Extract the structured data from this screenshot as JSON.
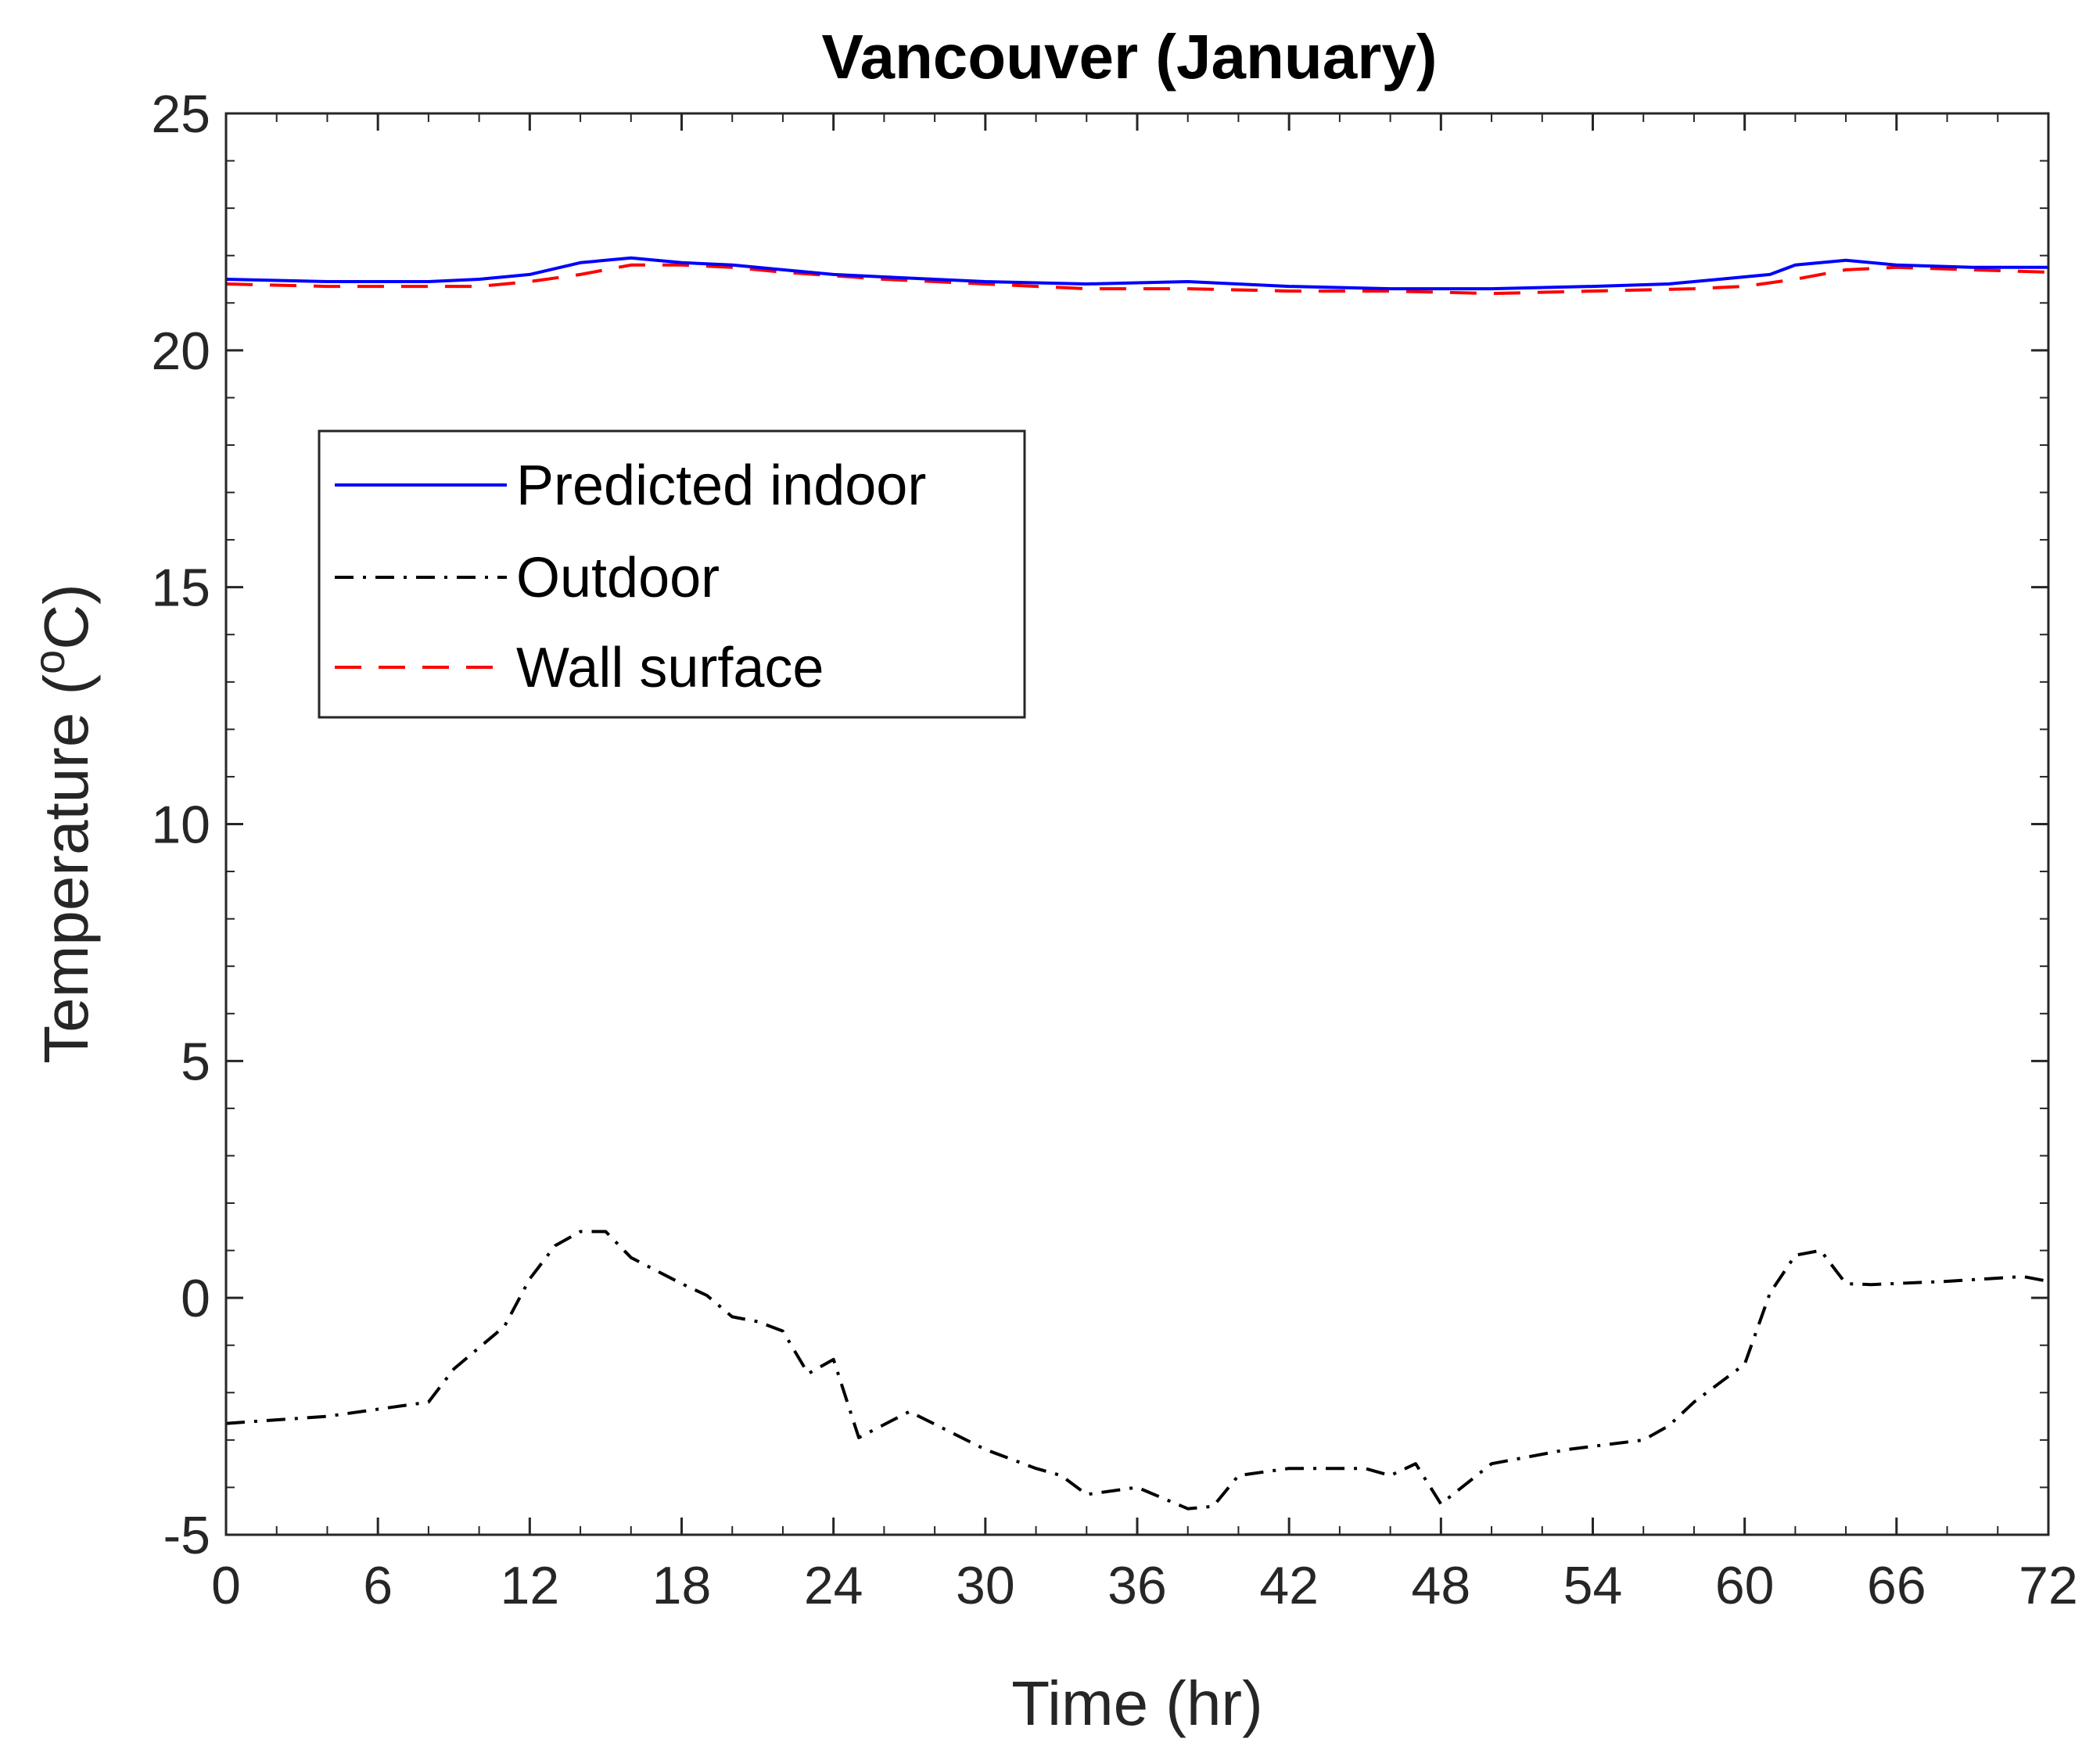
{
  "chart_data": {
    "type": "line",
    "title": "Vancouver (January)",
    "xlabel": "Time (hr)",
    "ylabel_main": "Temperature (",
    "ylabel_sup": "o",
    "ylabel_tail": "C)",
    "xlim": [
      0,
      72
    ],
    "ylim": [
      -5,
      25
    ],
    "x_ticks": [
      0,
      6,
      12,
      18,
      24,
      30,
      36,
      42,
      48,
      54,
      60,
      66,
      72
    ],
    "x_tick_labels": [
      "0",
      "6",
      "12",
      "18",
      "24",
      "30",
      "36",
      "42",
      "48",
      "54",
      "60",
      "66",
      "72"
    ],
    "y_ticks": [
      -5,
      0,
      5,
      10,
      15,
      20,
      25
    ],
    "y_tick_labels": [
      "-5",
      "0",
      "5",
      "10",
      "15",
      "20",
      "25"
    ],
    "grid": false,
    "legend_position": "upper-left",
    "series": [
      {
        "name": "Predicted indoor",
        "color": "#0000ff",
        "style": "solid",
        "x": [
          0,
          4,
          8,
          10,
          12,
          14,
          16,
          18,
          20,
          22,
          24,
          26,
          30,
          34,
          38,
          42,
          46,
          50,
          54,
          57,
          59,
          61,
          62,
          64,
          66,
          69,
          72
        ],
        "y": [
          21.5,
          21.45,
          21.45,
          21.5,
          21.6,
          21.85,
          21.95,
          21.85,
          21.8,
          21.7,
          21.6,
          21.55,
          21.45,
          21.4,
          21.45,
          21.35,
          21.3,
          21.3,
          21.35,
          21.4,
          21.5,
          21.6,
          21.8,
          21.9,
          21.8,
          21.75,
          21.75
        ]
      },
      {
        "name": "Outdoor",
        "color": "#000000",
        "style": "dashdot",
        "x": [
          0,
          4,
          8,
          9,
          10,
          11,
          12,
          13,
          14,
          15,
          16,
          18,
          19,
          20,
          21,
          22,
          23,
          24,
          25,
          27,
          30,
          32,
          33,
          34,
          36,
          38,
          39,
          40,
          42,
          45,
          46,
          47,
          48,
          50,
          53,
          56,
          57,
          58,
          59,
          60,
          61,
          62,
          63,
          64,
          65,
          68,
          71,
          72
        ],
        "y": [
          -2.65,
          -2.5,
          -2.2,
          -1.5,
          -1.05,
          -0.6,
          0.4,
          1.1,
          1.4,
          1.4,
          0.85,
          0.3,
          0.05,
          -0.4,
          -0.5,
          -0.7,
          -1.6,
          -1.3,
          -2.95,
          -2.4,
          -3.2,
          -3.6,
          -3.75,
          -4.15,
          -4.0,
          -4.45,
          -4.4,
          -3.75,
          -3.6,
          -3.6,
          -3.75,
          -3.5,
          -4.35,
          -3.5,
          -3.2,
          -3.0,
          -2.7,
          -2.2,
          -1.8,
          -1.4,
          0.1,
          0.9,
          1.0,
          0.3,
          0.28,
          0.35,
          0.45,
          0.35
        ]
      },
      {
        "name": "Wall surface",
        "color": "#ff0000",
        "style": "dashed",
        "x": [
          0,
          4,
          8,
          10,
          12,
          14,
          16,
          18,
          20,
          22,
          26,
          30,
          34,
          38,
          42,
          46,
          50,
          54,
          58,
          60,
          62,
          64,
          66,
          69,
          72
        ],
        "y": [
          21.4,
          21.35,
          21.35,
          21.35,
          21.45,
          21.6,
          21.8,
          21.8,
          21.75,
          21.65,
          21.5,
          21.4,
          21.3,
          21.3,
          21.25,
          21.25,
          21.2,
          21.25,
          21.3,
          21.35,
          21.5,
          21.7,
          21.75,
          21.7,
          21.65
        ]
      }
    ]
  }
}
